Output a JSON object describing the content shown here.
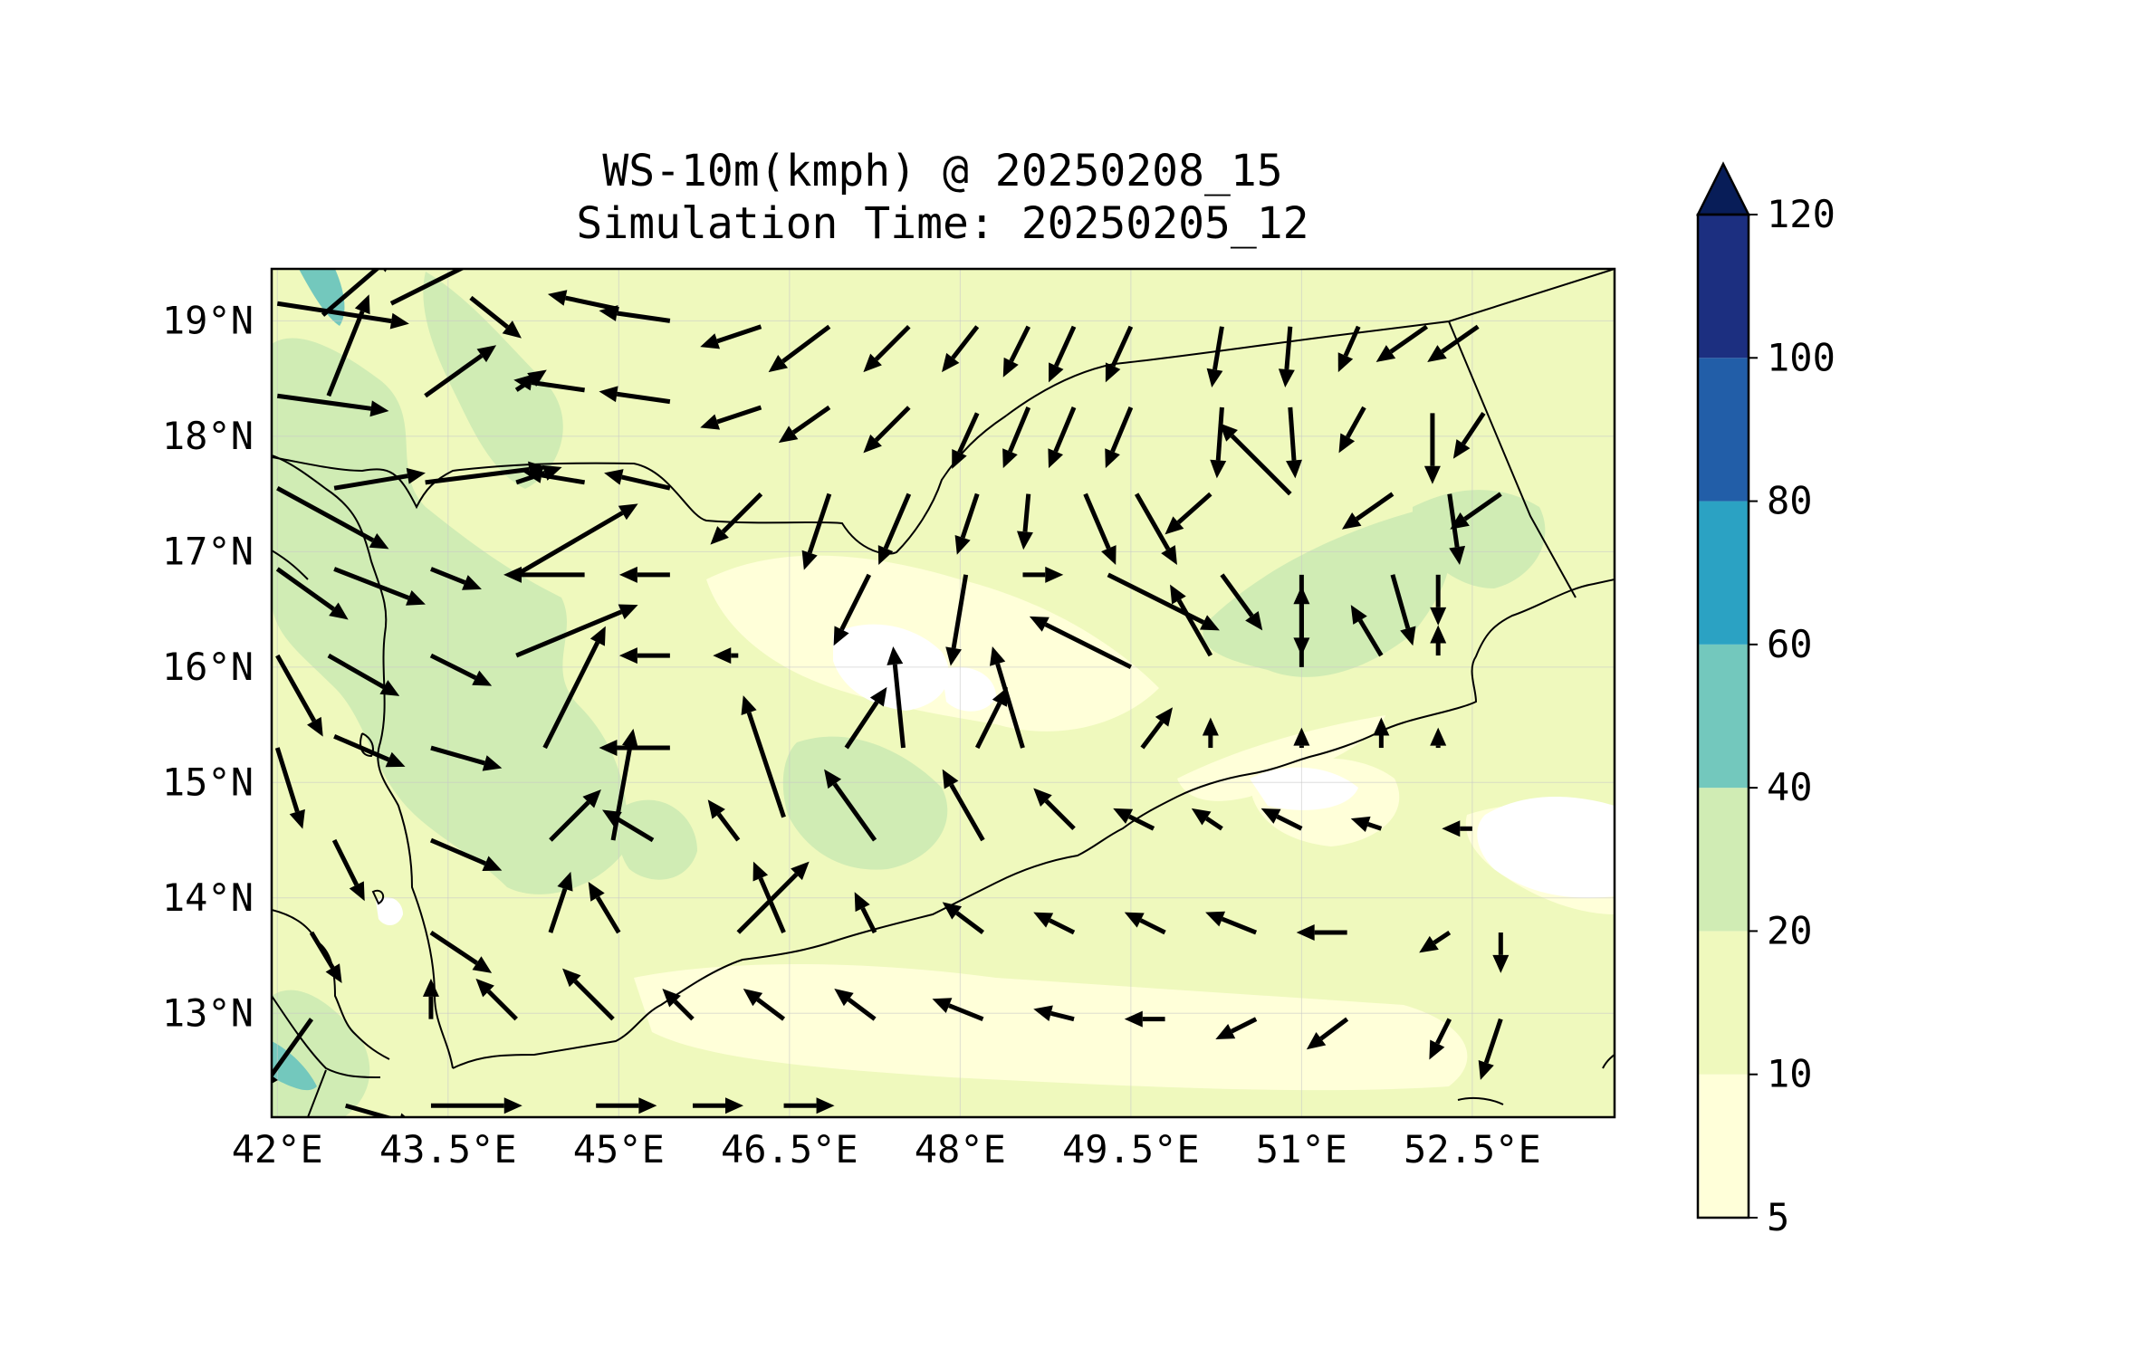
{
  "figure": {
    "title_line1": "WS-10m(kmph) @ 20250208_15",
    "title_line2": "Simulation Time: 20250205_12"
  },
  "map": {
    "lon_range": [
      41.95,
      53.75
    ],
    "lat_range": [
      12.1,
      19.45
    ],
    "x_ticks": [
      {
        "value": 42.0,
        "label": "42°E"
      },
      {
        "value": 43.5,
        "label": "43.5°E"
      },
      {
        "value": 45.0,
        "label": "45°E"
      },
      {
        "value": 46.5,
        "label": "46.5°E"
      },
      {
        "value": 48.0,
        "label": "48°E"
      },
      {
        "value": 49.5,
        "label": "49.5°E"
      },
      {
        "value": 51.0,
        "label": "51°E"
      },
      {
        "value": 52.5,
        "label": "52.5°E"
      }
    ],
    "y_ticks": [
      {
        "value": 19,
        "label": "19°N"
      },
      {
        "value": 18,
        "label": "18°N"
      },
      {
        "value": 17,
        "label": "17°N"
      },
      {
        "value": 16,
        "label": "16°N"
      },
      {
        "value": 15,
        "label": "15°N"
      },
      {
        "value": 14,
        "label": "14°N"
      },
      {
        "value": 13,
        "label": "13°N"
      }
    ],
    "grid": true
  },
  "colorbar": {
    "extend": "max",
    "levels": [
      {
        "from": 5,
        "to": 10,
        "color": "#ffffd9"
      },
      {
        "from": 10,
        "to": 20,
        "color": "#eff9bd"
      },
      {
        "from": 20,
        "to": 40,
        "color": "#d0ecb4"
      },
      {
        "from": 40,
        "to": 60,
        "color": "#73c8bd"
      },
      {
        "from": 60,
        "to": 80,
        "color": "#2ba2c3"
      },
      {
        "from": 80,
        "to": 100,
        "color": "#225ea8"
      },
      {
        "from": 100,
        "to": 120,
        "color": "#1c2f80"
      }
    ],
    "over_color": "#081d58",
    "tick_labels": [
      "5",
      "10",
      "20",
      "40",
      "60",
      "80",
      "100",
      "120"
    ]
  },
  "chart_data": {
    "type": "heatmap",
    "variable": "WS-10m(kmph)",
    "vectors": [
      {
        "lon": 42.0,
        "lat": 19.15,
        "u": 26,
        "v": -4
      },
      {
        "lon": 42.4,
        "lat": 19.05,
        "u": 14,
        "v": 12
      },
      {
        "lon": 43.0,
        "lat": 19.15,
        "u": 24,
        "v": 12
      },
      {
        "lon": 43.7,
        "lat": 19.2,
        "u": 10,
        "v": -8
      },
      {
        "lon": 45.0,
        "lat": 19.1,
        "u": -14,
        "v": 3
      },
      {
        "lon": 45.45,
        "lat": 19.0,
        "u": -14,
        "v": 2
      },
      {
        "lon": 46.25,
        "lat": 18.95,
        "u": -12,
        "v": -4
      },
      {
        "lon": 46.85,
        "lat": 18.95,
        "u": -12,
        "v": -9
      },
      {
        "lon": 47.55,
        "lat": 18.95,
        "u": -9,
        "v": -9
      },
      {
        "lon": 48.15,
        "lat": 18.95,
        "u": -7,
        "v": -9
      },
      {
        "lon": 48.6,
        "lat": 18.95,
        "u": -5,
        "v": -10
      },
      {
        "lon": 49.0,
        "lat": 18.95,
        "u": -5,
        "v": -11
      },
      {
        "lon": 49.5,
        "lat": 18.95,
        "u": -5,
        "v": -11
      },
      {
        "lon": 50.3,
        "lat": 18.95,
        "u": -2,
        "v": -12
      },
      {
        "lon": 50.9,
        "lat": 18.95,
        "u": -1,
        "v": -12
      },
      {
        "lon": 51.5,
        "lat": 18.95,
        "u": -4,
        "v": -9
      },
      {
        "lon": 52.1,
        "lat": 18.95,
        "u": -10,
        "v": -7
      },
      {
        "lon": 52.55,
        "lat": 18.95,
        "u": -10,
        "v": -7
      },
      {
        "lon": 42.0,
        "lat": 18.35,
        "u": 22,
        "v": -3
      },
      {
        "lon": 42.45,
        "lat": 18.35,
        "u": 8,
        "v": 20
      },
      {
        "lon": 43.3,
        "lat": 18.35,
        "u": 14,
        "v": 10
      },
      {
        "lon": 44.1,
        "lat": 18.4,
        "u": 6,
        "v": 4
      },
      {
        "lon": 44.7,
        "lat": 18.4,
        "u": -14,
        "v": 2
      },
      {
        "lon": 45.45,
        "lat": 18.3,
        "u": -14,
        "v": 2
      },
      {
        "lon": 46.25,
        "lat": 18.25,
        "u": -12,
        "v": -4
      },
      {
        "lon": 46.85,
        "lat": 18.25,
        "u": -10,
        "v": -7
      },
      {
        "lon": 47.55,
        "lat": 18.25,
        "u": -9,
        "v": -9
      },
      {
        "lon": 48.15,
        "lat": 18.2,
        "u": -5,
        "v": -11
      },
      {
        "lon": 48.6,
        "lat": 18.25,
        "u": -5,
        "v": -12
      },
      {
        "lon": 49.0,
        "lat": 18.25,
        "u": -5,
        "v": -12
      },
      {
        "lon": 49.5,
        "lat": 18.25,
        "u": -5,
        "v": -12
      },
      {
        "lon": 50.3,
        "lat": 18.25,
        "u": -1,
        "v": -14
      },
      {
        "lon": 50.9,
        "lat": 18.25,
        "u": 1,
        "v": -14
      },
      {
        "lon": 51.55,
        "lat": 18.25,
        "u": -5,
        "v": -9
      },
      {
        "lon": 52.15,
        "lat": 18.2,
        "u": 0,
        "v": -14
      },
      {
        "lon": 52.6,
        "lat": 18.2,
        "u": -6,
        "v": -9
      },
      {
        "lon": 42.0,
        "lat": 17.55,
        "u": 22,
        "v": -12
      },
      {
        "lon": 42.5,
        "lat": 17.55,
        "u": 18,
        "v": 3
      },
      {
        "lon": 43.3,
        "lat": 17.6,
        "u": 24,
        "v": 3
      },
      {
        "lon": 44.1,
        "lat": 17.6,
        "u": 9,
        "v": 3
      },
      {
        "lon": 44.7,
        "lat": 17.6,
        "u": -12,
        "v": 2
      },
      {
        "lon": 45.45,
        "lat": 17.55,
        "u": -13,
        "v": 3
      },
      {
        "lon": 46.25,
        "lat": 17.5,
        "u": -10,
        "v": -10
      },
      {
        "lon": 46.85,
        "lat": 17.5,
        "u": -5,
        "v": -15
      },
      {
        "lon": 47.55,
        "lat": 17.5,
        "u": -6,
        "v": -14
      },
      {
        "lon": 48.15,
        "lat": 17.5,
        "u": -4,
        "v": -12
      },
      {
        "lon": 48.6,
        "lat": 17.5,
        "u": -1,
        "v": -11
      },
      {
        "lon": 49.1,
        "lat": 17.5,
        "u": 6,
        "v": -14
      },
      {
        "lon": 49.55,
        "lat": 17.5,
        "u": 8,
        "v": -14
      },
      {
        "lon": 50.2,
        "lat": 17.5,
        "u": -9,
        "v": -8
      },
      {
        "lon": 50.9,
        "lat": 17.5,
        "u": -14,
        "v": 14
      },
      {
        "lon": 51.8,
        "lat": 17.5,
        "u": -10,
        "v": -7
      },
      {
        "lon": 52.3,
        "lat": 17.5,
        "u": 2,
        "v": -14
      },
      {
        "lon": 52.75,
        "lat": 17.5,
        "u": -10,
        "v": -7
      },
      {
        "lon": 42.0,
        "lat": 16.85,
        "u": 14,
        "v": -10
      },
      {
        "lon": 42.5,
        "lat": 16.85,
        "u": 18,
        "v": -7
      },
      {
        "lon": 43.35,
        "lat": 16.85,
        "u": 10,
        "v": -4
      },
      {
        "lon": 44.1,
        "lat": 16.8,
        "u": 24,
        "v": 14
      },
      {
        "lon": 44.7,
        "lat": 16.8,
        "u": -16,
        "v": 0
      },
      {
        "lon": 45.45,
        "lat": 16.8,
        "u": -10,
        "v": 0
      },
      {
        "lon": 47.2,
        "lat": 16.8,
        "u": -7,
        "v": -14
      },
      {
        "lon": 48.05,
        "lat": 16.8,
        "u": -3,
        "v": -18
      },
      {
        "lon": 48.55,
        "lat": 16.8,
        "u": 8,
        "v": 0
      },
      {
        "lon": 49.3,
        "lat": 16.8,
        "u": 22,
        "v": -11
      },
      {
        "lon": 50.3,
        "lat": 16.8,
        "u": 8,
        "v": -11
      },
      {
        "lon": 51.0,
        "lat": 16.8,
        "u": 0,
        "v": -16
      },
      {
        "lon": 51.8,
        "lat": 16.8,
        "u": 4,
        "v": -14
      },
      {
        "lon": 52.2,
        "lat": 16.8,
        "u": 0,
        "v": -10
      },
      {
        "lon": 42.0,
        "lat": 16.1,
        "u": 9,
        "v": -16
      },
      {
        "lon": 42.45,
        "lat": 16.1,
        "u": 14,
        "v": -8
      },
      {
        "lon": 43.35,
        "lat": 16.1,
        "u": 12,
        "v": -6
      },
      {
        "lon": 44.1,
        "lat": 16.1,
        "u": 24,
        "v": 10
      },
      {
        "lon": 44.35,
        "lat": 15.3,
        "u": 12,
        "v": 24
      },
      {
        "lon": 45.45,
        "lat": 16.1,
        "u": -10,
        "v": 0
      },
      {
        "lon": 46.05,
        "lat": 16.1,
        "u": -5,
        "v": 0
      },
      {
        "lon": 47.5,
        "lat": 15.3,
        "u": -2,
        "v": 20
      },
      {
        "lon": 48.55,
        "lat": 15.3,
        "u": -6,
        "v": 20
      },
      {
        "lon": 49.5,
        "lat": 16.0,
        "u": -20,
        "v": 10
      },
      {
        "lon": 50.2,
        "lat": 16.1,
        "u": -8,
        "v": 14
      },
      {
        "lon": 51.0,
        "lat": 16.0,
        "u": 0,
        "v": 16
      },
      {
        "lon": 51.7,
        "lat": 16.1,
        "u": -6,
        "v": 10
      },
      {
        "lon": 52.2,
        "lat": 16.1,
        "u": 0,
        "v": 6
      },
      {
        "lon": 42.0,
        "lat": 15.3,
        "u": 5,
        "v": -16
      },
      {
        "lon": 42.5,
        "lat": 15.4,
        "u": 14,
        "v": -6
      },
      {
        "lon": 43.35,
        "lat": 15.3,
        "u": 14,
        "v": -4
      },
      {
        "lon": 44.95,
        "lat": 14.5,
        "u": 4,
        "v": 22
      },
      {
        "lon": 45.45,
        "lat": 15.3,
        "u": -14,
        "v": 0
      },
      {
        "lon": 46.45,
        "lat": 14.7,
        "u": -8,
        "v": 24
      },
      {
        "lon": 47.0,
        "lat": 15.3,
        "u": 8,
        "v": 12
      },
      {
        "lon": 48.15,
        "lat": 15.3,
        "u": 6,
        "v": 12
      },
      {
        "lon": 49.6,
        "lat": 15.3,
        "u": 6,
        "v": 8
      },
      {
        "lon": 50.2,
        "lat": 15.3,
        "u": 0,
        "v": 6
      },
      {
        "lon": 51.0,
        "lat": 15.3,
        "u": 0,
        "v": 4
      },
      {
        "lon": 51.7,
        "lat": 15.3,
        "u": 0,
        "v": 6
      },
      {
        "lon": 52.2,
        "lat": 15.3,
        "u": 0,
        "v": 4
      },
      {
        "lon": 42.5,
        "lat": 14.5,
        "u": 6,
        "v": -12
      },
      {
        "lon": 43.35,
        "lat": 14.5,
        "u": 14,
        "v": -6
      },
      {
        "lon": 44.4,
        "lat": 14.5,
        "u": 10,
        "v": 10
      },
      {
        "lon": 45.3,
        "lat": 14.5,
        "u": -10,
        "v": 6
      },
      {
        "lon": 46.05,
        "lat": 14.5,
        "u": -6,
        "v": 8
      },
      {
        "lon": 47.25,
        "lat": 14.5,
        "u": -10,
        "v": 14
      },
      {
        "lon": 48.2,
        "lat": 14.5,
        "u": -8,
        "v": 14
      },
      {
        "lon": 49.0,
        "lat": 14.6,
        "u": -8,
        "v": 8
      },
      {
        "lon": 49.7,
        "lat": 14.6,
        "u": -8,
        "v": 4
      },
      {
        "lon": 50.3,
        "lat": 14.6,
        "u": -6,
        "v": 4
      },
      {
        "lon": 51.0,
        "lat": 14.6,
        "u": -8,
        "v": 4
      },
      {
        "lon": 51.7,
        "lat": 14.6,
        "u": -6,
        "v": 2
      },
      {
        "lon": 52.5,
        "lat": 14.6,
        "u": -6,
        "v": 0
      },
      {
        "lon": 42.3,
        "lat": 13.7,
        "u": 6,
        "v": -10
      },
      {
        "lon": 43.35,
        "lat": 13.7,
        "u": 12,
        "v": -8
      },
      {
        "lon": 44.4,
        "lat": 13.7,
        "u": 4,
        "v": 12
      },
      {
        "lon": 45.0,
        "lat": 13.7,
        "u": -6,
        "v": 10
      },
      {
        "lon": 46.05,
        "lat": 13.7,
        "u": 14,
        "v": 14
      },
      {
        "lon": 46.45,
        "lat": 13.7,
        "u": -6,
        "v": 14
      },
      {
        "lon": 47.25,
        "lat": 13.7,
        "u": -4,
        "v": 8
      },
      {
        "lon": 48.2,
        "lat": 13.7,
        "u": -8,
        "v": 6
      },
      {
        "lon": 49.0,
        "lat": 13.7,
        "u": -8,
        "v": 4
      },
      {
        "lon": 49.8,
        "lat": 13.7,
        "u": -8,
        "v": 4
      },
      {
        "lon": 50.6,
        "lat": 13.7,
        "u": -10,
        "v": 4
      },
      {
        "lon": 51.4,
        "lat": 13.7,
        "u": -10,
        "v": 0
      },
      {
        "lon": 52.3,
        "lat": 13.7,
        "u": -6,
        "v": -4
      },
      {
        "lon": 52.75,
        "lat": 13.7,
        "u": 0,
        "v": -8
      },
      {
        "lon": 42.3,
        "lat": 12.95,
        "u": -10,
        "v": -14
      },
      {
        "lon": 43.35,
        "lat": 12.95,
        "u": 0,
        "v": 8
      },
      {
        "lon": 44.1,
        "lat": 12.95,
        "u": -8,
        "v": 8
      },
      {
        "lon": 44.95,
        "lat": 12.95,
        "u": -10,
        "v": 10
      },
      {
        "lon": 45.65,
        "lat": 12.95,
        "u": -6,
        "v": 6
      },
      {
        "lon": 46.45,
        "lat": 12.95,
        "u": -8,
        "v": 6
      },
      {
        "lon": 47.25,
        "lat": 12.95,
        "u": -8,
        "v": 6
      },
      {
        "lon": 48.2,
        "lat": 12.95,
        "u": -10,
        "v": 4
      },
      {
        "lon": 49.0,
        "lat": 12.95,
        "u": -8,
        "v": 2
      },
      {
        "lon": 49.8,
        "lat": 12.95,
        "u": -8,
        "v": 0
      },
      {
        "lon": 50.6,
        "lat": 12.95,
        "u": -8,
        "v": -4
      },
      {
        "lon": 51.4,
        "lat": 12.95,
        "u": -8,
        "v": -6
      },
      {
        "lon": 52.3,
        "lat": 12.95,
        "u": -4,
        "v": -8
      },
      {
        "lon": 52.75,
        "lat": 12.95,
        "u": -4,
        "v": -12
      },
      {
        "lon": 42.6,
        "lat": 12.2,
        "u": 14,
        "v": -4
      },
      {
        "lon": 43.35,
        "lat": 12.2,
        "u": 18,
        "v": 0
      },
      {
        "lon": 44.8,
        "lat": 12.2,
        "u": 12,
        "v": 0
      },
      {
        "lon": 45.65,
        "lat": 12.2,
        "u": 10,
        "v": 0
      },
      {
        "lon": 46.45,
        "lat": 12.2,
        "u": 10,
        "v": 0
      }
    ]
  }
}
